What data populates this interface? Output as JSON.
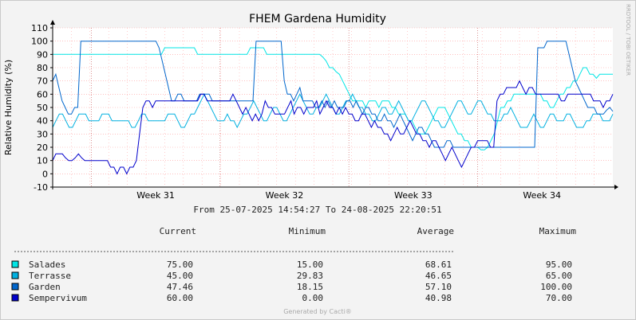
{
  "chart_data": {
    "type": "line",
    "title": "FHEM Gardena Humidity",
    "ylabel": "Relative Humidity (%)",
    "ylim": [
      -10,
      110
    ],
    "yticks": [
      -10,
      0,
      10,
      20,
      30,
      40,
      50,
      60,
      70,
      80,
      90,
      100,
      110
    ],
    "x_ticks": [
      "Week 31",
      "Week 32",
      "Week 33",
      "Week 34"
    ],
    "time_range": "From 25-07-2025 14:54:27 To 24-08-2025 22:20:51",
    "grid": true,
    "watermark": "RRDTOOL / TOBI OETIKER",
    "footer": "Generated by Cacti®",
    "legend_headers": {
      "current": "Current",
      "minimum": "Minimum",
      "average": "Average",
      "maximum": "Maximum"
    },
    "series": [
      {
        "name": "Salades",
        "color": "#00E5E5",
        "current": "75.00",
        "minimum": "15.00",
        "average": "68.61",
        "maximum": "95.00",
        "values": [
          90,
          90,
          90,
          90,
          90,
          90,
          90,
          90,
          90,
          90,
          90,
          90,
          90,
          90,
          90,
          90,
          90,
          90,
          90,
          90,
          90,
          90,
          90,
          90,
          90,
          90,
          90,
          90,
          90,
          90,
          90,
          90,
          90,
          90,
          95,
          95,
          95,
          95,
          95,
          95,
          95,
          95,
          95,
          95,
          90,
          90,
          90,
          90,
          90,
          90,
          90,
          90,
          90,
          90,
          90,
          90,
          90,
          90,
          90,
          90,
          95,
          95,
          95,
          95,
          95,
          90,
          90,
          90,
          90,
          90,
          90,
          90,
          90,
          90,
          90,
          90,
          90,
          90,
          90,
          90,
          90,
          90,
          88,
          85,
          80,
          80,
          77,
          75,
          70,
          65,
          60,
          55,
          55,
          55,
          55,
          50,
          55,
          55,
          55,
          50,
          55,
          55,
          55,
          50,
          50,
          45,
          45,
          45,
          40,
          40,
          35,
          30,
          30,
          30,
          35,
          40,
          45,
          50,
          50,
          50,
          45,
          40,
          35,
          30,
          30,
          25,
          25,
          20,
          20,
          20,
          18,
          18,
          20,
          25,
          30,
          40,
          50,
          50,
          55,
          55,
          60,
          60,
          60,
          60,
          60,
          60,
          60,
          60,
          60,
          55,
          55,
          50,
          50,
          55,
          60,
          60,
          65,
          65,
          70,
          70,
          75,
          80,
          80,
          75,
          75,
          72,
          75,
          75,
          75,
          75,
          75
        ]
      },
      {
        "name": "Terrasse",
        "color": "#00B0E0",
        "current": "45.00",
        "minimum": "29.83",
        "average": "46.65",
        "maximum": "65.00",
        "values": [
          35,
          40,
          45,
          45,
          40,
          35,
          35,
          40,
          45,
          45,
          45,
          40,
          40,
          40,
          40,
          45,
          45,
          45,
          40,
          40,
          40,
          40,
          40,
          40,
          35,
          35,
          40,
          45,
          45,
          40,
          40,
          40,
          40,
          40,
          40,
          45,
          45,
          45,
          40,
          35,
          35,
          40,
          45,
          45,
          50,
          55,
          60,
          55,
          50,
          45,
          40,
          40,
          40,
          45,
          40,
          40,
          35,
          40,
          45,
          45,
          50,
          55,
          50,
          45,
          40,
          40,
          45,
          50,
          50,
          45,
          40,
          40,
          45,
          50,
          55,
          60,
          55,
          50,
          45,
          45,
          50,
          50,
          55,
          60,
          55,
          50,
          45,
          45,
          50,
          55,
          55,
          60,
          55,
          50,
          50,
          45,
          45,
          40,
          40,
          45,
          50,
          50,
          45,
          45,
          50,
          55,
          50,
          45,
          40,
          40,
          45,
          50,
          55,
          55,
          50,
          45,
          40,
          40,
          35,
          35,
          40,
          45,
          50,
          55,
          55,
          50,
          45,
          45,
          50,
          55,
          55,
          50,
          45,
          45,
          40,
          40,
          40,
          45,
          45,
          50,
          45,
          40,
          35,
          35,
          35,
          40,
          45,
          40,
          35,
          35,
          40,
          45,
          45,
          40,
          40,
          40,
          45,
          45,
          40,
          35,
          35,
          35,
          40,
          40,
          45,
          45,
          45,
          40,
          40,
          40,
          45
        ]
      },
      {
        "name": "Garden",
        "color": "#0066CC",
        "current": "47.46",
        "minimum": "18.15",
        "average": "57.10",
        "maximum": "100.00",
        "values": [
          70,
          75,
          65,
          55,
          50,
          45,
          45,
          50,
          50,
          100,
          100,
          100,
          100,
          100,
          100,
          100,
          100,
          100,
          100,
          100,
          100,
          100,
          100,
          100,
          100,
          100,
          100,
          100,
          100,
          100,
          100,
          100,
          100,
          100,
          95,
          85,
          75,
          65,
          55,
          55,
          60,
          60,
          55,
          55,
          55,
          55,
          55,
          60,
          60,
          60,
          60,
          55,
          55,
          55,
          55,
          55,
          55,
          55,
          55,
          55,
          55,
          55,
          55,
          55,
          55,
          100,
          100,
          100,
          100,
          100,
          100,
          100,
          100,
          100,
          70,
          60,
          60,
          55,
          60,
          65,
          55,
          55,
          55,
          55,
          50,
          50,
          55,
          50,
          55,
          50,
          55,
          50,
          50,
          50,
          55,
          55,
          50,
          55,
          50,
          45,
          50,
          50,
          45,
          45,
          40,
          40,
          45,
          40,
          40,
          35,
          40,
          45,
          40,
          35,
          30,
          25,
          30,
          35,
          35,
          30,
          30,
          25,
          20,
          20,
          20,
          20,
          25,
          25,
          20,
          20,
          20,
          20,
          20,
          20,
          20,
          20,
          20,
          20,
          20,
          20,
          20,
          20,
          20,
          20,
          20,
          20,
          20,
          20,
          20,
          20,
          20,
          20,
          20,
          20,
          20,
          95,
          95,
          95,
          100,
          100,
          100,
          100,
          100,
          100,
          100,
          90,
          80,
          70,
          65,
          60,
          55,
          50,
          50,
          50,
          45,
          45,
          45,
          48,
          50,
          47
        ]
      },
      {
        "name": "Sempervivum",
        "color": "#0000CC",
        "current": "60.00",
        "minimum": "0.00",
        "average": "40.98",
        "maximum": "70.00",
        "values": [
          10,
          15,
          15,
          15,
          12,
          10,
          10,
          12,
          15,
          12,
          10,
          10,
          10,
          10,
          10,
          10,
          10,
          10,
          5,
          5,
          0,
          5,
          5,
          0,
          5,
          5,
          10,
          30,
          50,
          55,
          55,
          50,
          55,
          55,
          55,
          55,
          55,
          55,
          55,
          55,
          55,
          55,
          55,
          55,
          55,
          55,
          60,
          60,
          55,
          55,
          55,
          55,
          55,
          55,
          55,
          55,
          60,
          55,
          50,
          45,
          50,
          45,
          40,
          45,
          40,
          45,
          55,
          50,
          50,
          45,
          45,
          45,
          45,
          50,
          55,
          45,
          50,
          50,
          45,
          50,
          50,
          50,
          55,
          45,
          50,
          55,
          50,
          50,
          45,
          50,
          45,
          50,
          45,
          45,
          40,
          40,
          45,
          45,
          40,
          35,
          40,
          35,
          35,
          30,
          30,
          25,
          30,
          35,
          30,
          30,
          35,
          40,
          35,
          30,
          30,
          25,
          25,
          20,
          25,
          25,
          20,
          15,
          10,
          15,
          20,
          15,
          10,
          5,
          10,
          15,
          20,
          20,
          25,
          25,
          25,
          25,
          20,
          20,
          55,
          60,
          60,
          65,
          65,
          65,
          65,
          70,
          65,
          60,
          65,
          65,
          60,
          60,
          60,
          60,
          60,
          60,
          60,
          60,
          55,
          55,
          60,
          60,
          60,
          60,
          60,
          60,
          60,
          60,
          55,
          55,
          55,
          50,
          55,
          55,
          60
        ]
      }
    ]
  }
}
